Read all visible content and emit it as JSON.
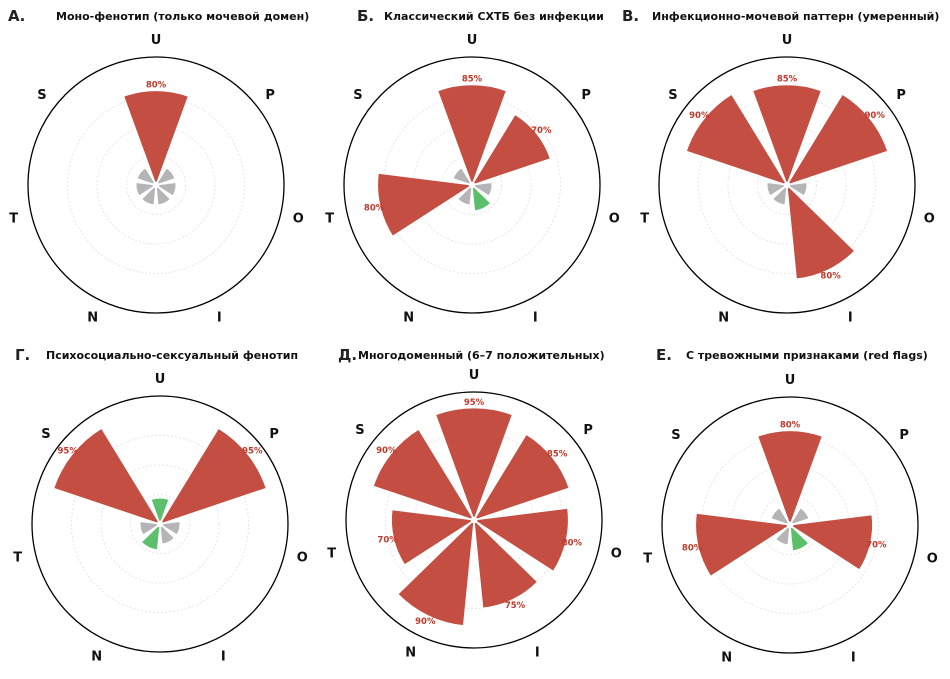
{
  "chart_data": [
    {
      "type": "polar-bar",
      "letter": "А.",
      "title": "Моно-фенотип (только мочевой домен)",
      "categories": [
        "U",
        "P",
        "O",
        "I",
        "N",
        "T",
        "S"
      ],
      "values": [
        80,
        0,
        0,
        0,
        0,
        0,
        0
      ],
      "status": [
        "positive",
        "neutral",
        "neutral",
        "neutral",
        "neutral",
        "neutral",
        "neutral"
      ],
      "value_labels": [
        "80%",
        "",
        "",
        "",
        "",
        "",
        ""
      ],
      "rlim": [
        0,
        100
      ]
    },
    {
      "type": "polar-bar",
      "letter": "Б.",
      "title": "Классический СХТБ без инфекции",
      "categories": [
        "U",
        "P",
        "O",
        "I",
        "N",
        "T",
        "S"
      ],
      "values": [
        85,
        70,
        0,
        0,
        0,
        80,
        0
      ],
      "status": [
        "positive",
        "positive",
        "neutral",
        "protective",
        "neutral",
        "positive",
        "neutral"
      ],
      "value_labels": [
        "85%",
        "70%",
        "",
        "",
        "",
        "80%",
        ""
      ],
      "rlim": [
        0,
        100
      ]
    },
    {
      "type": "polar-bar",
      "letter": "В.",
      "title": "Инфекционно-мочевой паттерн (умеренный)",
      "categories": [
        "U",
        "P",
        "O",
        "I",
        "N",
        "T",
        "S"
      ],
      "values": [
        85,
        90,
        0,
        80,
        0,
        0,
        90
      ],
      "status": [
        "positive",
        "positive",
        "neutral",
        "positive",
        "neutral",
        "neutral",
        "positive"
      ],
      "value_labels": [
        "85%",
        "90%",
        "",
        "80%",
        "",
        "",
        "90%"
      ],
      "rlim": [
        0,
        100
      ]
    },
    {
      "type": "polar-bar",
      "letter": "Г.",
      "title": "Психосоциально-сексуальный фенотип",
      "categories": [
        "U",
        "P",
        "O",
        "I",
        "N",
        "T",
        "S"
      ],
      "values": [
        0,
        95,
        0,
        0,
        0,
        0,
        95
      ],
      "status": [
        "protective",
        "positive",
        "neutral",
        "neutral",
        "protective",
        "neutral",
        "positive"
      ],
      "value_labels": [
        "",
        "95%",
        "",
        "",
        "",
        "",
        "95%"
      ],
      "rlim": [
        0,
        100
      ]
    },
    {
      "type": "polar-bar",
      "letter": "Д.",
      "title": "Многодоменный (6–7 положительных)",
      "categories": [
        "U",
        "P",
        "O",
        "I",
        "N",
        "T",
        "S"
      ],
      "values": [
        95,
        85,
        80,
        75,
        90,
        70,
        90
      ],
      "status": [
        "positive",
        "positive",
        "positive",
        "positive",
        "positive",
        "positive",
        "positive"
      ],
      "value_labels": [
        "95%",
        "85%",
        "80%",
        "75%",
        "90%",
        "70%",
        "90%"
      ],
      "rlim": [
        0,
        100
      ]
    },
    {
      "type": "polar-bar",
      "letter": "Е.",
      "title": "С тревожными признаками (red flags)",
      "categories": [
        "U",
        "P",
        "O",
        "I",
        "N",
        "T",
        "S"
      ],
      "values": [
        80,
        0,
        70,
        0,
        0,
        80,
        0
      ],
      "status": [
        "positive",
        "neutral",
        "positive",
        "protective",
        "neutral",
        "positive",
        "neutral"
      ],
      "value_labels": [
        "80%",
        "",
        "70%",
        "",
        "",
        "80%",
        ""
      ],
      "rlim": [
        0,
        100
      ]
    }
  ],
  "colors": {
    "positive": "#c44e41",
    "neutral": "#b5b5b8",
    "protective": "#5bbf6c",
    "label": "#c0392b",
    "outline": "#000000",
    "grid": "#e6e6e6"
  }
}
